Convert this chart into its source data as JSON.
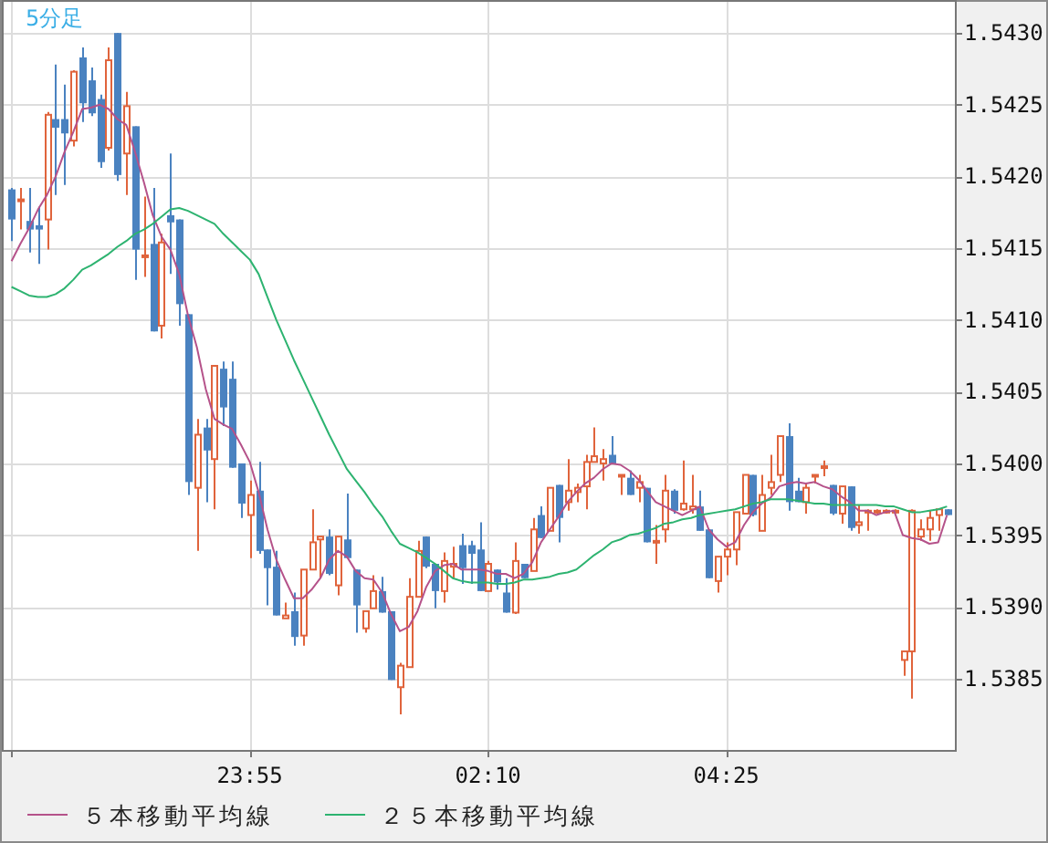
{
  "chart_data": {
    "type": "candlestick",
    "title": "5分足",
    "categories": [
      null,
      null,
      null,
      null,
      null,
      null,
      null,
      null,
      null,
      null,
      null,
      null,
      null,
      null,
      null,
      null,
      null,
      null,
      null,
      null,
      null,
      null,
      null,
      null,
      null,
      null,
      null,
      "23:55",
      null,
      null,
      null,
      null,
      null,
      null,
      null,
      null,
      null,
      null,
      null,
      null,
      null,
      null,
      null,
      null,
      null,
      null,
      null,
      null,
      null,
      null,
      null,
      null,
      null,
      null,
      "02:10",
      null,
      null,
      null,
      null,
      null,
      null,
      null,
      null,
      null,
      null,
      null,
      null,
      null,
      null,
      null,
      null,
      null,
      null,
      null,
      null,
      null,
      null,
      null,
      null,
      null,
      null,
      "04:25",
      null,
      null,
      null,
      null,
      null,
      null,
      null,
      null,
      null,
      null,
      null,
      null,
      null,
      null,
      null,
      null,
      null,
      null,
      null,
      null,
      null,
      null,
      null,
      null,
      null
    ],
    "ohlc": [
      [
        1.54191,
        1.54192,
        1.54155,
        1.5417
      ],
      [
        1.54183,
        1.54192,
        1.54163,
        1.54184
      ],
      [
        1.54169,
        1.54192,
        1.54147,
        1.54163
      ],
      [
        1.54166,
        1.54179,
        1.54139,
        1.54163
      ],
      [
        1.5417,
        1.54245,
        1.54149,
        1.54243
      ],
      [
        1.5424,
        1.54278,
        1.54187,
        1.54234
      ],
      [
        1.5424,
        1.54264,
        1.54194,
        1.5423
      ],
      [
        1.54225,
        1.54274,
        1.54221,
        1.54273
      ],
      [
        1.54283,
        1.5429,
        1.54238,
        1.54251
      ],
      [
        1.54267,
        1.54276,
        1.54242,
        1.54244
      ],
      [
        1.54254,
        1.54257,
        1.54206,
        1.5421
      ],
      [
        1.5422,
        1.5429,
        1.54218,
        1.54281
      ],
      [
        1.543,
        1.543,
        1.54197,
        1.54201
      ],
      [
        1.54216,
        1.54259,
        1.54187,
        1.54249
      ],
      [
        1.54235,
        1.54235,
        1.54128,
        1.54149
      ],
      [
        1.54144,
        1.54186,
        1.5413,
        1.54145
      ],
      [
        1.54153,
        1.54192,
        1.54092,
        1.54092
      ],
      [
        1.54096,
        1.5416,
        1.54087,
        1.54154
      ],
      [
        1.54173,
        1.54216,
        1.54132,
        1.54168
      ],
      [
        1.5417,
        1.5417,
        1.54096,
        1.54111
      ],
      [
        1.54104,
        1.54104,
        1.53978,
        1.53987
      ],
      [
        1.53983,
        1.54031,
        1.53939,
        1.5402
      ],
      [
        1.54025,
        1.54031,
        1.53973,
        1.54009
      ],
      [
        1.54003,
        1.54068,
        1.53968,
        1.54068
      ],
      [
        1.54066,
        1.54071,
        1.54026,
        1.54039
      ],
      [
        1.54059,
        1.54071,
        1.53997,
        1.53997
      ],
      [
        1.54,
        1.54,
        1.53962,
        1.53972
      ],
      [
        1.53964,
        1.53988,
        1.53934,
        1.53978
      ],
      [
        1.53981,
        1.54001,
        1.53937,
        1.53939
      ],
      [
        1.5394,
        1.5394,
        1.53901,
        1.53927
      ],
      [
        1.53928,
        1.53939,
        1.53894,
        1.53894
      ],
      [
        1.53892,
        1.53903,
        1.53892,
        1.53894
      ],
      [
        1.53897,
        1.5391,
        1.53873,
        1.53879
      ],
      [
        1.5388,
        1.53926,
        1.53873,
        1.53926
      ],
      [
        1.53926,
        1.53968,
        1.53926,
        1.53945
      ],
      [
        1.53947,
        1.53949,
        1.5392,
        1.53949
      ],
      [
        1.53949,
        1.53954,
        1.53922,
        1.53923
      ],
      [
        1.53915,
        1.53949,
        1.53908,
        1.53949
      ],
      [
        1.53947,
        1.53979,
        1.53934,
        1.53934
      ],
      [
        1.53926,
        1.53926,
        1.53882,
        1.53901
      ],
      [
        1.53885,
        1.53897,
        1.53882,
        1.53897
      ],
      [
        1.53899,
        1.53922,
        1.53899,
        1.53911
      ],
      [
        1.53911,
        1.53921,
        1.53896,
        1.53896
      ],
      [
        1.53897,
        1.53897,
        1.53849,
        1.53849
      ],
      [
        1.53844,
        1.53861,
        1.53825,
        1.53859
      ],
      [
        1.53858,
        1.5392,
        1.53858,
        1.53907
      ],
      [
        1.53907,
        1.53946,
        1.53907,
        1.53939
      ],
      [
        1.53949,
        1.53949,
        1.53927,
        1.53928
      ],
      [
        1.5393,
        1.5393,
        1.53899,
        1.53911
      ],
      [
        1.53911,
        1.53938,
        1.53903,
        1.53932
      ],
      [
        1.53928,
        1.53942,
        1.5392,
        1.5393
      ],
      [
        1.53943,
        1.53951,
        1.53916,
        1.53927
      ],
      [
        1.53943,
        1.53946,
        1.53916,
        1.53937
      ],
      [
        1.5394,
        1.53959,
        1.53911,
        1.53911
      ],
      [
        1.53911,
        1.53932,
        1.53911,
        1.5393
      ],
      [
        1.53926,
        1.53926,
        1.53912,
        1.53917
      ],
      [
        1.5391,
        1.5392,
        1.53896,
        1.53896
      ],
      [
        1.53896,
        1.53945,
        1.53895,
        1.53932
      ],
      [
        1.5393,
        1.5393,
        1.5392,
        1.5392
      ],
      [
        1.53925,
        1.53962,
        1.53925,
        1.53954
      ],
      [
        1.53964,
        1.5397,
        1.53948,
        1.53948
      ],
      [
        1.53953,
        1.53983,
        1.53953,
        1.53983
      ],
      [
        1.53985,
        1.53985,
        1.53945,
        1.53962
      ],
      [
        1.53973,
        1.54003,
        1.53967,
        1.53981
      ],
      [
        1.5398,
        1.53986,
        1.53973,
        1.53983
      ],
      [
        1.53984,
        1.54006,
        1.53968,
        1.54001
      ],
      [
        1.54001,
        1.54025,
        1.54001,
        1.54005
      ],
      [
        1.54,
        1.5401,
        1.53988,
        1.54003
      ],
      [
        1.54006,
        1.54019,
        1.54,
        1.54
      ],
      [
        1.53991,
        1.53992,
        1.53978,
        1.53992
      ],
      [
        1.5399,
        1.53995,
        1.53978,
        1.53978
      ],
      [
        1.53983,
        1.53992,
        1.53973,
        1.53987
      ],
      [
        1.53983,
        1.53983,
        1.53945,
        1.53945
      ],
      [
        1.53945,
        1.53957,
        1.5393,
        1.53946
      ],
      [
        1.53954,
        1.53992,
        1.53945,
        1.53981
      ],
      [
        1.53981,
        1.53982,
        1.53965,
        1.53967
      ],
      [
        1.53968,
        1.54002,
        1.53967,
        1.53972
      ],
      [
        1.53968,
        1.53992,
        1.53965,
        1.5397
      ],
      [
        1.5397,
        1.53981,
        1.53953,
        1.53953
      ],
      [
        1.53954,
        1.53954,
        1.5392,
        1.5392
      ],
      [
        1.53918,
        1.53935,
        1.5391,
        1.53935
      ],
      [
        1.53935,
        1.53945,
        1.53922,
        1.5394
      ],
      [
        1.5394,
        1.53966,
        1.53929,
        1.53966
      ],
      [
        1.53965,
        1.53992,
        1.53965,
        1.53992
      ],
      [
        1.53992,
        1.53992,
        1.53963,
        1.53964
      ],
      [
        1.53953,
        1.53992,
        1.53953,
        1.53978
      ],
      [
        1.53983,
        1.54006,
        1.53978,
        1.53987
      ],
      [
        1.53992,
        1.54019,
        1.53987,
        1.54019
      ],
      [
        1.54019,
        1.54028,
        1.53967,
        1.53973
      ],
      [
        1.53981,
        1.5399,
        1.53973,
        1.53973
      ],
      [
        1.53973,
        1.53986,
        1.53965,
        1.53983
      ],
      [
        1.53991,
        1.53992,
        1.53986,
        1.53992
      ],
      [
        1.53997,
        1.54002,
        1.53991,
        1.53998
      ],
      [
        1.53985,
        1.53985,
        1.53964,
        1.53965
      ],
      [
        1.53965,
        1.53984,
        1.53958,
        1.53984
      ],
      [
        1.53984,
        1.53984,
        1.53953,
        1.53955
      ],
      [
        1.53957,
        1.53971,
        1.53951,
        1.53959
      ],
      [
        1.53966,
        1.53968,
        1.53953,
        1.53967
      ],
      [
        1.53966,
        1.53968,
        1.53965,
        1.53967
      ],
      [
        1.53966,
        1.53968,
        1.53965,
        1.53967
      ],
      [
        1.53966,
        1.53968,
        1.53965,
        1.53967
      ],
      [
        1.53863,
        1.53869,
        1.53852,
        1.53869
      ],
      [
        1.53869,
        1.53968,
        1.53836,
        1.53967
      ],
      [
        1.53949,
        1.53961,
        1.53946,
        1.53954
      ],
      [
        1.53954,
        1.53967,
        1.53946,
        1.53962
      ],
      [
        1.53964,
        1.53968,
        1.53953,
        1.53968
      ],
      [
        1.53968,
        1.53968,
        1.53964,
        1.53964
      ]
    ],
    "colors": [
      "#4a82c0",
      "#e0643c",
      "#4a82c0",
      "#4a82c0",
      "#e0643c",
      "#4a82c0",
      "#4a82c0",
      "#e0643c",
      "#4a82c0",
      "#4a82c0",
      "#4a82c0",
      "#e0643c",
      "#4a82c0",
      "#e0643c",
      "#4a82c0",
      "#e0643c",
      "#4a82c0",
      "#e0643c",
      "#4a82c0",
      "#4a82c0",
      "#4a82c0",
      "#e0643c",
      "#4a82c0",
      "#e0643c",
      "#4a82c0",
      "#4a82c0",
      "#4a82c0",
      "#e0643c",
      "#4a82c0",
      "#4a82c0",
      "#4a82c0",
      "#e0643c",
      "#4a82c0",
      "#e0643c",
      "#e0643c",
      "#e0643c",
      "#4a82c0",
      "#e0643c",
      "#4a82c0",
      "#4a82c0",
      "#e0643c",
      "#e0643c",
      "#4a82c0",
      "#4a82c0",
      "#e0643c",
      "#e0643c",
      "#e0643c",
      "#4a82c0",
      "#4a82c0",
      "#e0643c",
      "#e0643c",
      "#4a82c0",
      "#4a82c0",
      "#4a82c0",
      "#e0643c",
      "#4a82c0",
      "#4a82c0",
      "#e0643c",
      "#4a82c0",
      "#e0643c",
      "#4a82c0",
      "#e0643c",
      "#4a82c0",
      "#e0643c",
      "#e0643c",
      "#e0643c",
      "#e0643c",
      "#e0643c",
      "#4a82c0",
      "#e0643c",
      "#4a82c0",
      "#e0643c",
      "#4a82c0",
      "#e0643c",
      "#e0643c",
      "#4a82c0",
      "#e0643c",
      "#e0643c",
      "#4a82c0",
      "#4a82c0",
      "#e0643c",
      "#e0643c",
      "#e0643c",
      "#e0643c",
      "#4a82c0",
      "#e0643c",
      "#e0643c",
      "#e0643c",
      "#4a82c0",
      "#4a82c0",
      "#e0643c",
      "#e0643c",
      "#e0643c",
      "#4a82c0",
      "#e0643c",
      "#4a82c0",
      "#e0643c",
      "#e0643c",
      "#e0643c",
      "#e0643c",
      "#e0643c",
      "#e0643c",
      "#e0643c",
      "#e0643c",
      "#e0643c",
      "#e0643c",
      "#4a82c0"
    ],
    "series": [
      {
        "name": "５本移動平均線",
        "type": "line",
        "color": "#b5528a",
        "values": [
          1.54141,
          1.54153,
          1.54164,
          1.54177,
          1.54187,
          1.542,
          1.54217,
          1.54231,
          1.54247,
          1.54248,
          1.5425,
          1.54247,
          1.5424,
          1.54236,
          1.54217,
          1.54196,
          1.54173,
          1.54158,
          1.54149,
          1.54132,
          1.54103,
          1.54081,
          1.54052,
          1.54031,
          1.54027,
          1.54024,
          1.54013,
          1.54001,
          1.5398,
          1.53954,
          1.53933,
          1.53919,
          1.53906,
          1.53906,
          1.53912,
          1.5392,
          1.53933,
          1.53939,
          1.53935,
          1.53925,
          1.5392,
          1.53919,
          1.5391,
          1.53895,
          1.53883,
          1.53886,
          1.53897,
          1.53914,
          1.53925,
          1.53929,
          1.5393,
          1.53926,
          1.53926,
          1.53926,
          1.53925,
          1.53923,
          1.53923,
          1.5392,
          1.53923,
          1.53931,
          1.53945,
          1.53954,
          1.53963,
          1.53973,
          1.5398,
          1.53986,
          1.5399,
          1.53996,
          1.54,
          1.53999,
          1.53995,
          1.53989,
          1.53981,
          1.53973,
          1.5397,
          1.53967,
          1.53964,
          1.53967,
          1.5397,
          1.53954,
          1.53947,
          1.53942,
          1.53945,
          1.53957,
          1.53966,
          1.53972,
          1.53976,
          1.53984,
          1.53986,
          1.53987,
          1.53986,
          1.53987,
          1.53984,
          1.53982,
          1.53977,
          1.53973,
          1.53967,
          1.53967,
          1.53964,
          1.53966,
          1.53967,
          1.5395,
          1.53948,
          1.53947,
          1.53944,
          1.53945,
          1.53964
        ]
      },
      {
        "name": "２５本移動平均線",
        "type": "line",
        "color": "#2db370",
        "values": [
          1.54123,
          1.5412,
          1.54117,
          1.54116,
          1.54116,
          1.54118,
          1.54122,
          1.54128,
          1.54135,
          1.54138,
          1.54142,
          1.54146,
          1.54151,
          1.54155,
          1.5416,
          1.54163,
          1.54167,
          1.54172,
          1.54177,
          1.54178,
          1.54176,
          1.54173,
          1.5417,
          1.54167,
          1.5416,
          1.54154,
          1.54148,
          1.54142,
          1.54132,
          1.54116,
          1.541,
          1.54086,
          1.54072,
          1.54059,
          1.54046,
          1.54033,
          1.5402,
          1.54008,
          1.53996,
          1.53988,
          1.5398,
          1.53971,
          1.53963,
          1.53953,
          1.53944,
          1.53941,
          1.53938,
          1.53934,
          1.5393,
          1.53925,
          1.5392,
          1.53918,
          1.53917,
          1.53917,
          1.53917,
          1.53916,
          1.53916,
          1.53917,
          1.53919,
          1.53919,
          1.5392,
          1.53921,
          1.53923,
          1.53924,
          1.53926,
          1.53931,
          1.53936,
          1.5394,
          1.53945,
          1.53947,
          1.5395,
          1.53951,
          1.53953,
          1.53955,
          1.53958,
          1.53959,
          1.53961,
          1.53962,
          1.53964,
          1.53965,
          1.53966,
          1.53967,
          1.53968,
          1.5397,
          1.53972,
          1.53973,
          1.53975,
          1.53975,
          1.53975,
          1.53974,
          1.53973,
          1.53972,
          1.53972,
          1.53971,
          1.53971,
          1.53971,
          1.53971,
          1.53971,
          1.53971,
          1.5397,
          1.5397,
          1.53968,
          1.53966,
          1.53966,
          1.53967,
          1.53968,
          1.5397
        ]
      }
    ],
    "ylim": [
      1.53799,
      1.54323
    ],
    "yticks": [
      {
        "value": 1.5385,
        "label": "1.5385"
      },
      {
        "value": 1.539,
        "label": "1.5390"
      },
      {
        "value": 1.5395,
        "label": "1.5395"
      },
      {
        "value": 1.54,
        "label": "1.5400"
      },
      {
        "value": 1.5405,
        "label": "1.5405"
      },
      {
        "value": 1.541,
        "label": "1.5410"
      },
      {
        "value": 1.5415,
        "label": "1.5415"
      },
      {
        "value": 1.542,
        "label": "1.5420"
      },
      {
        "value": 1.5425,
        "label": "1.5425"
      },
      {
        "value": 1.543,
        "label": "1.5430"
      }
    ],
    "grid": true,
    "legend": "bottom"
  }
}
